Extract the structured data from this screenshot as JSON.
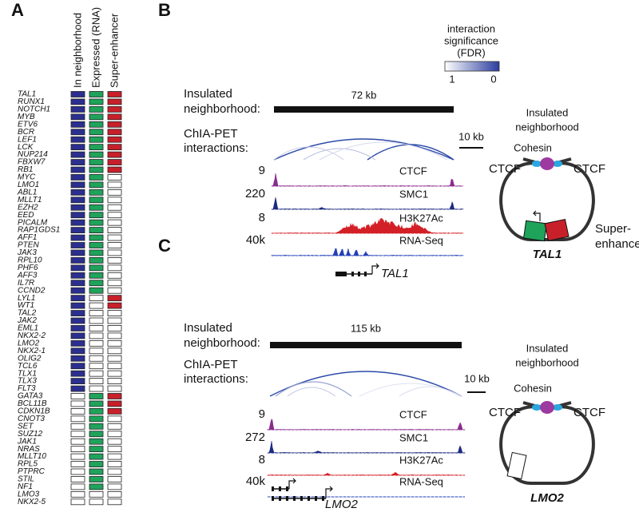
{
  "panel_a": {
    "label": "A",
    "columns": [
      "In neighborhood",
      "Expressed (RNA)",
      "Super-enhancer"
    ],
    "rows": [
      {
        "gene": "TAL1",
        "flags": [
          true,
          true,
          true
        ]
      },
      {
        "gene": "RUNX1",
        "flags": [
          true,
          true,
          true
        ]
      },
      {
        "gene": "NOTCH1",
        "flags": [
          true,
          true,
          true
        ]
      },
      {
        "gene": "MYB",
        "flags": [
          true,
          true,
          true
        ]
      },
      {
        "gene": "ETV6",
        "flags": [
          true,
          true,
          true
        ]
      },
      {
        "gene": "BCR",
        "flags": [
          true,
          true,
          true
        ]
      },
      {
        "gene": "LEF1",
        "flags": [
          true,
          true,
          true
        ]
      },
      {
        "gene": "LCK",
        "flags": [
          true,
          true,
          true
        ]
      },
      {
        "gene": "NUP214",
        "flags": [
          true,
          true,
          true
        ]
      },
      {
        "gene": "FBXW7",
        "flags": [
          true,
          true,
          true
        ]
      },
      {
        "gene": "RB1",
        "flags": [
          true,
          true,
          true
        ]
      },
      {
        "gene": "MYC",
        "flags": [
          true,
          true,
          false
        ]
      },
      {
        "gene": "LMO1",
        "flags": [
          true,
          true,
          false
        ]
      },
      {
        "gene": "ABL1",
        "flags": [
          true,
          true,
          false
        ]
      },
      {
        "gene": "MLLT1",
        "flags": [
          true,
          true,
          false
        ]
      },
      {
        "gene": "EZH2",
        "flags": [
          true,
          true,
          false
        ]
      },
      {
        "gene": "EED",
        "flags": [
          true,
          true,
          false
        ]
      },
      {
        "gene": "PICALM",
        "flags": [
          true,
          true,
          false
        ]
      },
      {
        "gene": "RAP1GDS1",
        "flags": [
          true,
          true,
          false
        ]
      },
      {
        "gene": "AFF1",
        "flags": [
          true,
          true,
          false
        ]
      },
      {
        "gene": "PTEN",
        "flags": [
          true,
          true,
          false
        ]
      },
      {
        "gene": "JAK3",
        "flags": [
          true,
          true,
          false
        ]
      },
      {
        "gene": "RPL10",
        "flags": [
          true,
          true,
          false
        ]
      },
      {
        "gene": "PHF6",
        "flags": [
          true,
          true,
          false
        ]
      },
      {
        "gene": "AFF3",
        "flags": [
          true,
          true,
          false
        ]
      },
      {
        "gene": "IL7R",
        "flags": [
          true,
          true,
          false
        ]
      },
      {
        "gene": "CCND2",
        "flags": [
          true,
          true,
          false
        ]
      },
      {
        "gene": "LYL1",
        "flags": [
          true,
          false,
          true
        ]
      },
      {
        "gene": "WT1",
        "flags": [
          true,
          false,
          true
        ]
      },
      {
        "gene": "TAL2",
        "flags": [
          true,
          false,
          false
        ]
      },
      {
        "gene": "JAK2",
        "flags": [
          true,
          false,
          false
        ]
      },
      {
        "gene": "EML1",
        "flags": [
          true,
          false,
          false
        ]
      },
      {
        "gene": "NKX2-2",
        "flags": [
          true,
          false,
          false
        ]
      },
      {
        "gene": "LMO2",
        "flags": [
          true,
          false,
          false
        ]
      },
      {
        "gene": "NKX2-1",
        "flags": [
          true,
          false,
          false
        ]
      },
      {
        "gene": "OLIG2",
        "flags": [
          true,
          false,
          false
        ]
      },
      {
        "gene": "TCL6",
        "flags": [
          true,
          false,
          false
        ]
      },
      {
        "gene": "TLX1",
        "flags": [
          true,
          false,
          false
        ]
      },
      {
        "gene": "TLX3",
        "flags": [
          true,
          false,
          false
        ]
      },
      {
        "gene": "FLT3",
        "flags": [
          true,
          false,
          false
        ]
      },
      {
        "gene": "GATA3",
        "flags": [
          false,
          true,
          true
        ]
      },
      {
        "gene": "BCL11B",
        "flags": [
          false,
          true,
          true
        ]
      },
      {
        "gene": "CDKN1B",
        "flags": [
          false,
          true,
          true
        ]
      },
      {
        "gene": "CNOT3",
        "flags": [
          false,
          true,
          false
        ]
      },
      {
        "gene": "SET",
        "flags": [
          false,
          true,
          false
        ]
      },
      {
        "gene": "SUZ12",
        "flags": [
          false,
          true,
          false
        ]
      },
      {
        "gene": "JAK1",
        "flags": [
          false,
          true,
          false
        ]
      },
      {
        "gene": "NRAS",
        "flags": [
          false,
          true,
          false
        ]
      },
      {
        "gene": "MLLT10",
        "flags": [
          false,
          true,
          false
        ]
      },
      {
        "gene": "RPL5",
        "flags": [
          false,
          true,
          false
        ]
      },
      {
        "gene": "PTPRC",
        "flags": [
          false,
          true,
          false
        ]
      },
      {
        "gene": "STIL",
        "flags": [
          false,
          true,
          false
        ]
      },
      {
        "gene": "NF1",
        "flags": [
          false,
          true,
          false
        ]
      },
      {
        "gene": "LMO3",
        "flags": [
          false,
          false,
          false
        ]
      },
      {
        "gene": "NKX2-5",
        "flags": [
          false,
          false,
          false
        ]
      }
    ]
  },
  "legend": {
    "title": [
      "interaction",
      "significance",
      "(FDR)"
    ],
    "low": "1",
    "high": "0"
  },
  "panels": [
    {
      "label": "B",
      "neighborhood_label": [
        "Insulated",
        "neighborhood:"
      ],
      "size": "72 kb",
      "chiapet_label": [
        "ChIA-PET",
        "interactions:"
      ],
      "scale": "10 kb",
      "tracks": [
        {
          "name": "CTCF",
          "max": "9"
        },
        {
          "name": "SMC1",
          "max": "220"
        },
        {
          "name": "H3K27Ac",
          "max": "8"
        },
        {
          "name": "RNA-Seq",
          "max": "40k"
        }
      ],
      "gene": "TAL1",
      "schematic": {
        "title": [
          "Insulated",
          "neighborhood"
        ],
        "cohesin": "Cohesin",
        "ctcf": [
          "CTCF",
          "CTCF"
        ],
        "enhancer": [
          "Super-",
          "enhancer"
        ],
        "gene": "TAL1"
      }
    },
    {
      "label": "C",
      "neighborhood_label": [
        "Insulated",
        "neighborhood:"
      ],
      "size": "115 kb",
      "chiapet_label": [
        "ChIA-PET",
        "interactions:"
      ],
      "scale": "10 kb",
      "tracks": [
        {
          "name": "CTCF",
          "max": "9"
        },
        {
          "name": "SMC1",
          "max": "272"
        },
        {
          "name": "H3K27Ac",
          "max": "8"
        },
        {
          "name": "RNA-Seq",
          "max": "40k"
        }
      ],
      "gene": "LMO2",
      "schematic": {
        "title": [
          "Insulated",
          "neighborhood"
        ],
        "cohesin": "Cohesin",
        "ctcf": [
          "CTCF",
          "CTCF"
        ],
        "gene": "LMO2"
      }
    }
  ]
}
